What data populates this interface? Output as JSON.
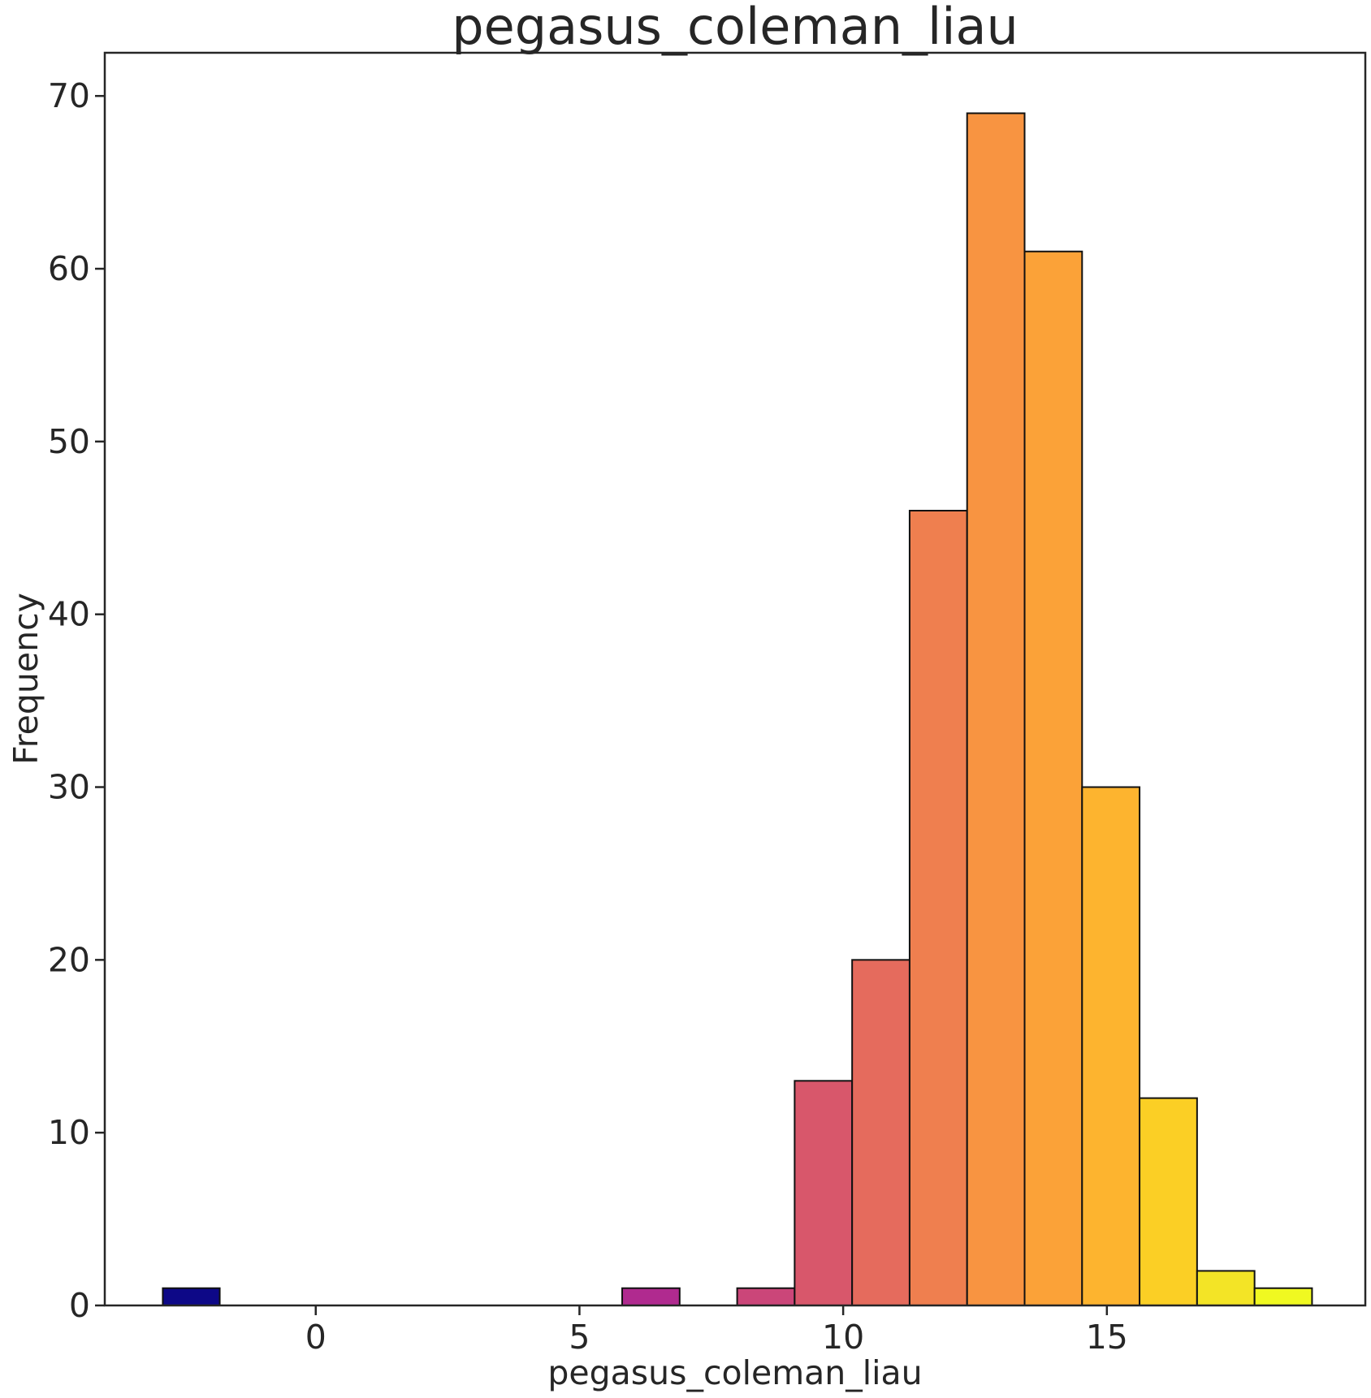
{
  "chart_data": {
    "type": "bar",
    "title": "pegasus_coleman_liau",
    "xlabel": "pegasus_coleman_liau",
    "ylabel": "Frequency",
    "xlim": [
      -4.0,
      19.9
    ],
    "ylim": [
      0,
      72.5
    ],
    "xticks": [
      0,
      5,
      10,
      15
    ],
    "yticks": [
      0,
      10,
      20,
      30,
      40,
      50,
      60,
      70
    ],
    "grid": false,
    "bins": [
      {
        "x0": -2.9,
        "x1": -1.82,
        "count": 1,
        "color": "#0d0887"
      },
      {
        "x0": -1.82,
        "x1": -0.73,
        "count": 0,
        "color": "#2a0593"
      },
      {
        "x0": -0.73,
        "x1": 0.36,
        "count": 0,
        "color": "#41049d"
      },
      {
        "x0": 0.36,
        "x1": 1.45,
        "count": 0,
        "color": "#5601a4"
      },
      {
        "x0": 1.45,
        "x1": 2.54,
        "count": 0,
        "color": "#6a00a8"
      },
      {
        "x0": 2.54,
        "x1": 3.63,
        "count": 0,
        "color": "#7e03a8"
      },
      {
        "x0": 3.63,
        "x1": 4.72,
        "count": 0,
        "color": "#8f0da4"
      },
      {
        "x0": 4.72,
        "x1": 5.81,
        "count": 0,
        "color": "#a01a9c"
      },
      {
        "x0": 5.81,
        "x1": 6.9,
        "count": 1,
        "color": "#b02a8f"
      },
      {
        "x0": 6.9,
        "x1": 7.99,
        "count": 0,
        "color": "#be3885"
      },
      {
        "x0": 7.99,
        "x1": 9.08,
        "count": 1,
        "color": "#cb4679"
      },
      {
        "x0": 9.08,
        "x1": 10.17,
        "count": 13,
        "color": "#d8576b"
      },
      {
        "x0": 10.17,
        "x1": 11.26,
        "count": 20,
        "color": "#e56b5d"
      },
      {
        "x0": 11.26,
        "x1": 12.35,
        "count": 46,
        "color": "#ef7f4f"
      },
      {
        "x0": 12.35,
        "x1": 13.44,
        "count": 69,
        "color": "#f89441"
      },
      {
        "x0": 13.44,
        "x1": 14.53,
        "count": 61,
        "color": "#fba238"
      },
      {
        "x0": 14.53,
        "x1": 15.62,
        "count": 30,
        "color": "#fdb42f"
      },
      {
        "x0": 15.62,
        "x1": 16.71,
        "count": 12,
        "color": "#fbcf25"
      },
      {
        "x0": 16.71,
        "x1": 17.8,
        "count": 2,
        "color": "#f3e426"
      },
      {
        "x0": 17.8,
        "x1": 18.89,
        "count": 1,
        "color": "#f0f921"
      }
    ]
  }
}
